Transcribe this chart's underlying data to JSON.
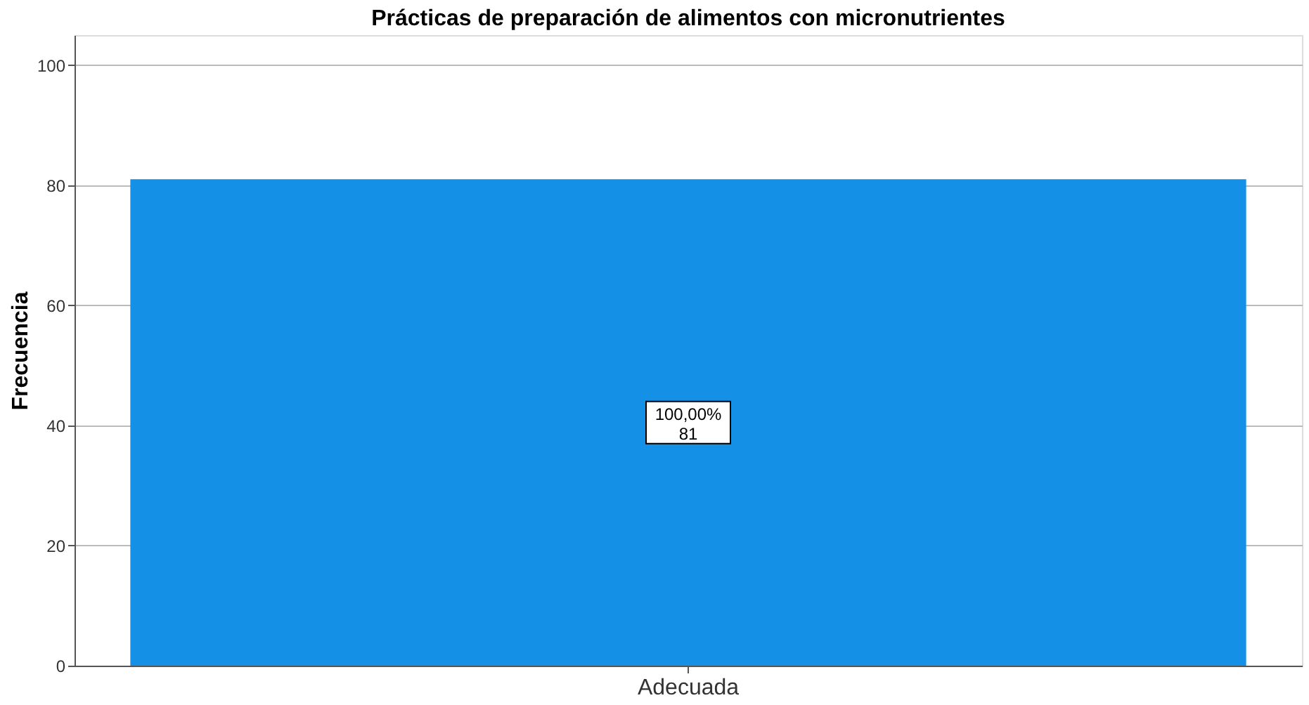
{
  "chart_data": {
    "type": "bar",
    "title": "Prácticas de preparación de alimentos con micronutrientes",
    "ylabel": "Frecuencia",
    "categories": [
      "Adecuada"
    ],
    "values": [
      81
    ],
    "value_labels": [
      "100,00%\n81"
    ],
    "color": "#1490e6",
    "ylim": [
      0,
      105
    ],
    "yticks": [
      0,
      20,
      40,
      60,
      80,
      100
    ],
    "grid": "y"
  }
}
